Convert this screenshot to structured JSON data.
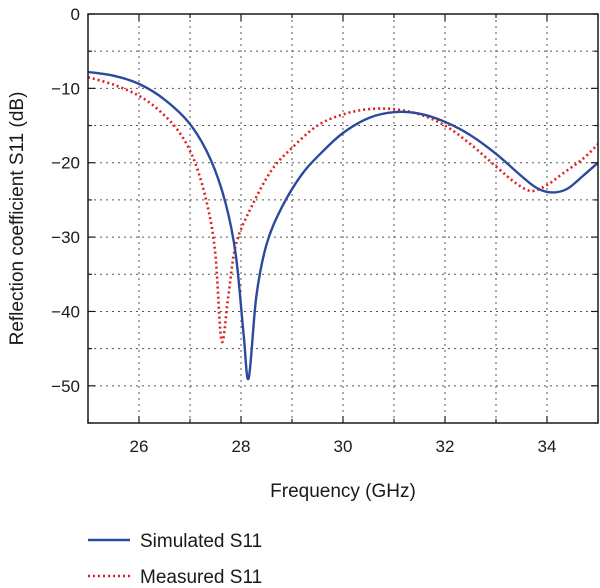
{
  "chart_data": {
    "type": "line",
    "xlabel": "Frequency (GHz)",
    "ylabel": "Reflection coefficient S11 (dB)",
    "xlim": [
      25,
      35
    ],
    "ylim": [
      -55,
      0
    ],
    "x_ticks": [
      26,
      28,
      30,
      32,
      34
    ],
    "x_tick_labels": [
      "26",
      "28",
      "30",
      "32",
      "34"
    ],
    "y_ticks": [
      0,
      -10,
      -20,
      -30,
      -40,
      -50
    ],
    "y_tick_labels": [
      "0",
      "−10",
      "−20",
      "−30",
      "−40",
      "−50"
    ],
    "grid": true,
    "legend_position": "bottom-left, below plot",
    "series": [
      {
        "name": "Simulated S11",
        "color": "#2b4a9c",
        "style": "solid",
        "points": [
          [
            25.0,
            -7.8
          ],
          [
            25.5,
            -8.3
          ],
          [
            26.0,
            -9.4
          ],
          [
            26.5,
            -11.5
          ],
          [
            27.0,
            -14.8
          ],
          [
            27.4,
            -19.5
          ],
          [
            27.7,
            -25.5
          ],
          [
            27.9,
            -32.5
          ],
          [
            28.05,
            -43.0
          ],
          [
            28.15,
            -49.0
          ],
          [
            28.3,
            -38.0
          ],
          [
            28.5,
            -31.0
          ],
          [
            28.8,
            -26.0
          ],
          [
            29.2,
            -21.5
          ],
          [
            29.6,
            -18.5
          ],
          [
            30.0,
            -16.0
          ],
          [
            30.5,
            -14.0
          ],
          [
            31.0,
            -13.2
          ],
          [
            31.5,
            -13.4
          ],
          [
            32.0,
            -14.5
          ],
          [
            32.5,
            -16.3
          ],
          [
            33.0,
            -18.8
          ],
          [
            33.5,
            -21.8
          ],
          [
            33.8,
            -23.4
          ],
          [
            34.1,
            -24.0
          ],
          [
            34.4,
            -23.5
          ],
          [
            34.7,
            -21.8
          ],
          [
            35.0,
            -20.0
          ]
        ]
      },
      {
        "name": "Measured S11",
        "color": "#e01e1e",
        "style": "dotted",
        "points": [
          [
            25.0,
            -8.5
          ],
          [
            25.5,
            -9.5
          ],
          [
            26.0,
            -11.0
          ],
          [
            26.4,
            -13.0
          ],
          [
            26.8,
            -16.0
          ],
          [
            27.1,
            -20.0
          ],
          [
            27.35,
            -26.0
          ],
          [
            27.5,
            -32.5
          ],
          [
            27.62,
            -44.0
          ],
          [
            27.75,
            -38.0
          ],
          [
            27.9,
            -31.0
          ],
          [
            28.2,
            -26.0
          ],
          [
            28.6,
            -21.0
          ],
          [
            29.0,
            -18.0
          ],
          [
            29.5,
            -15.0
          ],
          [
            30.0,
            -13.5
          ],
          [
            30.5,
            -12.8
          ],
          [
            31.0,
            -12.8
          ],
          [
            31.5,
            -13.5
          ],
          [
            32.0,
            -15.0
          ],
          [
            32.5,
            -17.5
          ],
          [
            33.0,
            -20.5
          ],
          [
            33.4,
            -22.8
          ],
          [
            33.7,
            -23.8
          ],
          [
            34.0,
            -23.0
          ],
          [
            34.3,
            -21.5
          ],
          [
            34.7,
            -19.5
          ],
          [
            35.0,
            -17.5
          ]
        ]
      }
    ]
  }
}
